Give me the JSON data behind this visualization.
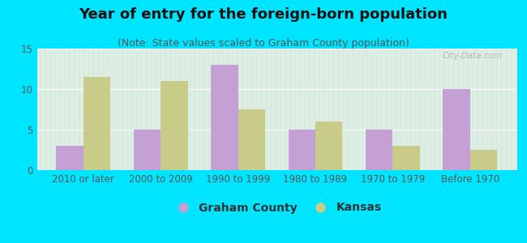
{
  "title": "Year of entry for the foreign-born population",
  "subtitle": "(Note: State values scaled to Graham County population)",
  "categories": [
    "2010 or later",
    "2000 to 2009",
    "1990 to 1999",
    "1980 to 1989",
    "1970 to 1979",
    "Before 1970"
  ],
  "graham_county": [
    3,
    5,
    13,
    5,
    5,
    10
  ],
  "kansas": [
    11.5,
    11,
    7.5,
    6,
    3,
    2.5
  ],
  "graham_color": "#c4a0d4",
  "kansas_color": "#c8cc88",
  "background_outer": "#00e5ff",
  "background_inner_top": "#e4eeee",
  "background_inner_bottom": "#d4ecd8",
  "ylim": [
    0,
    15
  ],
  "yticks": [
    0,
    5,
    10,
    15
  ],
  "bar_width": 0.35,
  "legend_labels": [
    "Graham County",
    "Kansas"
  ],
  "title_fontsize": 13,
  "subtitle_fontsize": 9,
  "tick_fontsize": 8.5,
  "legend_fontsize": 10
}
